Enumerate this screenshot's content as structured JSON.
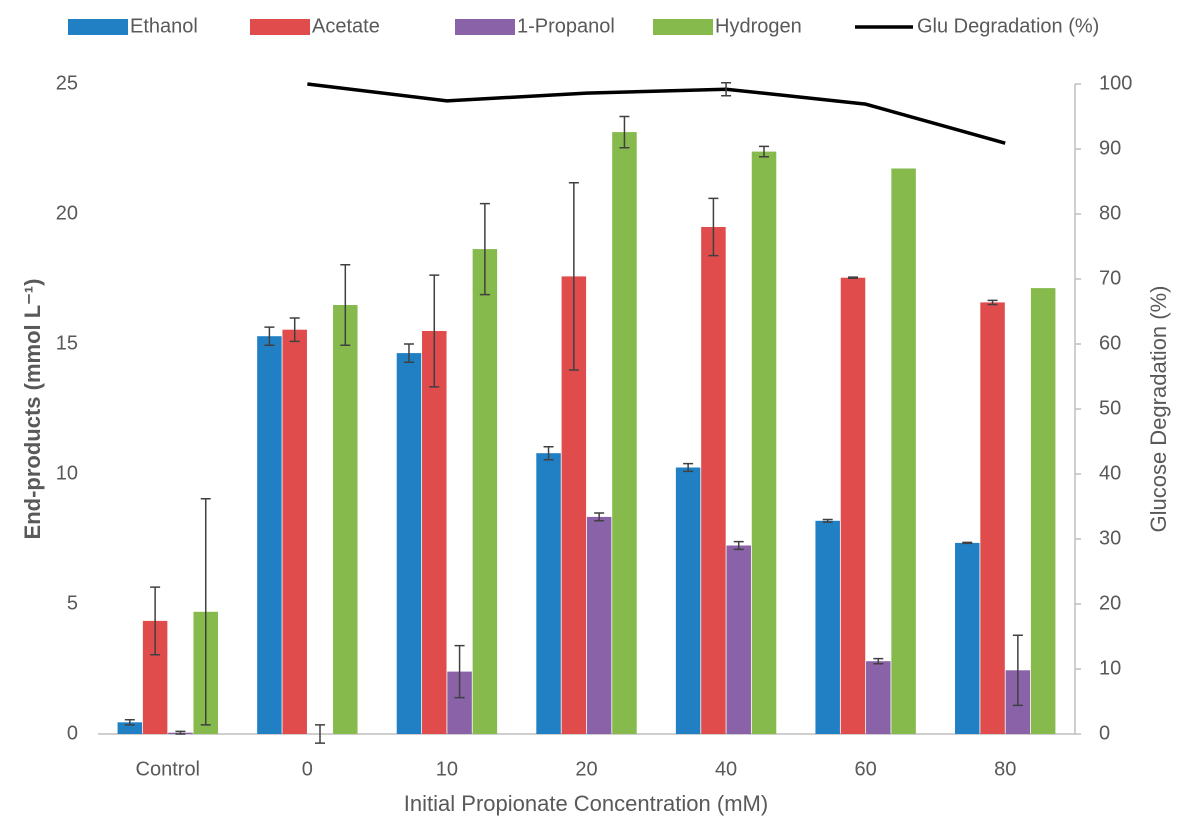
{
  "chart_data": {
    "type": "bar",
    "x_label": "Initial Propionate Concentration (mM)",
    "y_label": "End-products (mmol L⁻¹)",
    "y2_label": "Glucose Degradation (%)",
    "categories": [
      "Control",
      "0",
      "10",
      "20",
      "40",
      "60",
      "80"
    ],
    "series": [
      {
        "name": "Ethanol",
        "color": "#2180c4",
        "values": [
          0.45,
          15.3,
          14.65,
          10.8,
          10.25,
          8.2,
          7.35
        ],
        "error": [
          0.1,
          0.35,
          0.35,
          0.25,
          0.15,
          0.05,
          0.02
        ]
      },
      {
        "name": "Acetate",
        "color": "#e04c4c",
        "values": [
          4.35,
          15.55,
          15.5,
          17.6,
          19.5,
          17.55,
          16.6
        ],
        "error": [
          1.3,
          0.45,
          2.15,
          3.6,
          1.1,
          0.02,
          0.08
        ]
      },
      {
        "name": "1-Propanol",
        "color": "#8a62a8",
        "values": [
          0.05,
          0,
          2.4,
          8.35,
          7.25,
          2.8,
          2.45
        ],
        "error": [
          0.05,
          0.35,
          1.0,
          0.15,
          0.15,
          0.1,
          1.35
        ]
      },
      {
        "name": "Hydrogen",
        "color": "#87ba4c",
        "values": [
          4.7,
          16.5,
          18.65,
          23.15,
          22.4,
          21.75,
          17.15
        ],
        "error": [
          4.35,
          1.55,
          1.75,
          0.6,
          0.2,
          null,
          null
        ]
      },
      {
        "name": "Glu Degradation (%)",
        "type": "line",
        "axis": "y2",
        "color": "#000000",
        "values": [
          null,
          100,
          97.4,
          98.6,
          99.2,
          96.9,
          90.9
        ],
        "error": [
          null,
          null,
          null,
          null,
          1.0,
          null,
          null
        ]
      }
    ],
    "ylim": [
      0,
      25
    ],
    "yticks": [
      0,
      5,
      10,
      15,
      20,
      25
    ],
    "y2lim": [
      0,
      100
    ],
    "y2ticks": [
      0,
      10,
      20,
      30,
      40,
      50,
      60,
      70,
      80,
      90,
      100
    ],
    "grid": false,
    "legend": "top"
  }
}
